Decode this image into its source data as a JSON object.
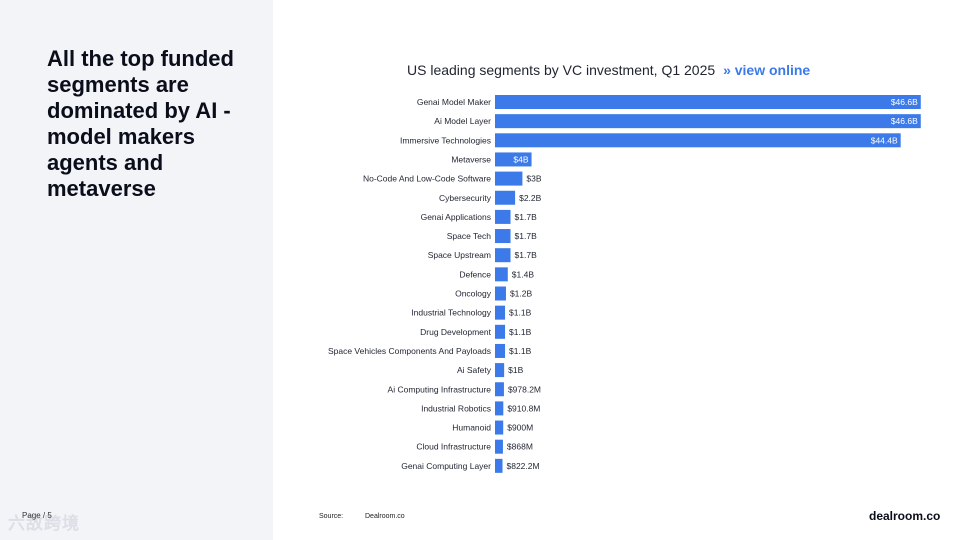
{
  "headline": "All the top funded segments are dominated by AI - model makers agents and metaverse",
  "page_label": "Page / 5",
  "watermark": "六敌跨境",
  "chart_title": "US leading segments by VC investment, Q1 2025",
  "chart_link": "» view online",
  "source_label": "Source:",
  "source_value": "Dealroom.co",
  "brand": "dealroom.co",
  "colors": {
    "bar": "#3b7ae8",
    "panel": "#f3f4f8"
  },
  "chart_data": {
    "type": "bar",
    "orientation": "horizontal",
    "title": "US leading segments by VC investment, Q1 2025",
    "unit": "USD billions",
    "xlim": [
      0,
      47.5
    ],
    "categories": [
      "Genai Model Maker",
      "Ai Model Layer",
      "Immersive Technologies",
      "Metaverse",
      "No-Code And Low-Code Software",
      "Cybersecurity",
      "Genai Applications",
      "Space Tech",
      "Space Upstream",
      "Defence",
      "Oncology",
      "Industrial Technology",
      "Drug Development",
      "Space Vehicles Components And Payloads",
      "Ai Safety",
      "Ai Computing Infrastructure",
      "Industrial Robotics",
      "Humanoid",
      "Cloud Infrastructure",
      "Genai Computing Layer"
    ],
    "values": [
      46.6,
      46.6,
      44.4,
      4,
      3,
      2.2,
      1.7,
      1.7,
      1.7,
      1.4,
      1.2,
      1.1,
      1.1,
      1.1,
      1,
      0.9782,
      0.9108,
      0.9,
      0.868,
      0.8222
    ],
    "labels": [
      "$46.6B",
      "$46.6B",
      "$44.4B",
      "$4B",
      "$3B",
      "$2.2B",
      "$1.7B",
      "$1.7B",
      "$1.7B",
      "$1.4B",
      "$1.2B",
      "$1.1B",
      "$1.1B",
      "$1.1B",
      "$1B",
      "$978.2M",
      "$910.8M",
      "$900M",
      "$868M",
      "$822.2M"
    ]
  }
}
